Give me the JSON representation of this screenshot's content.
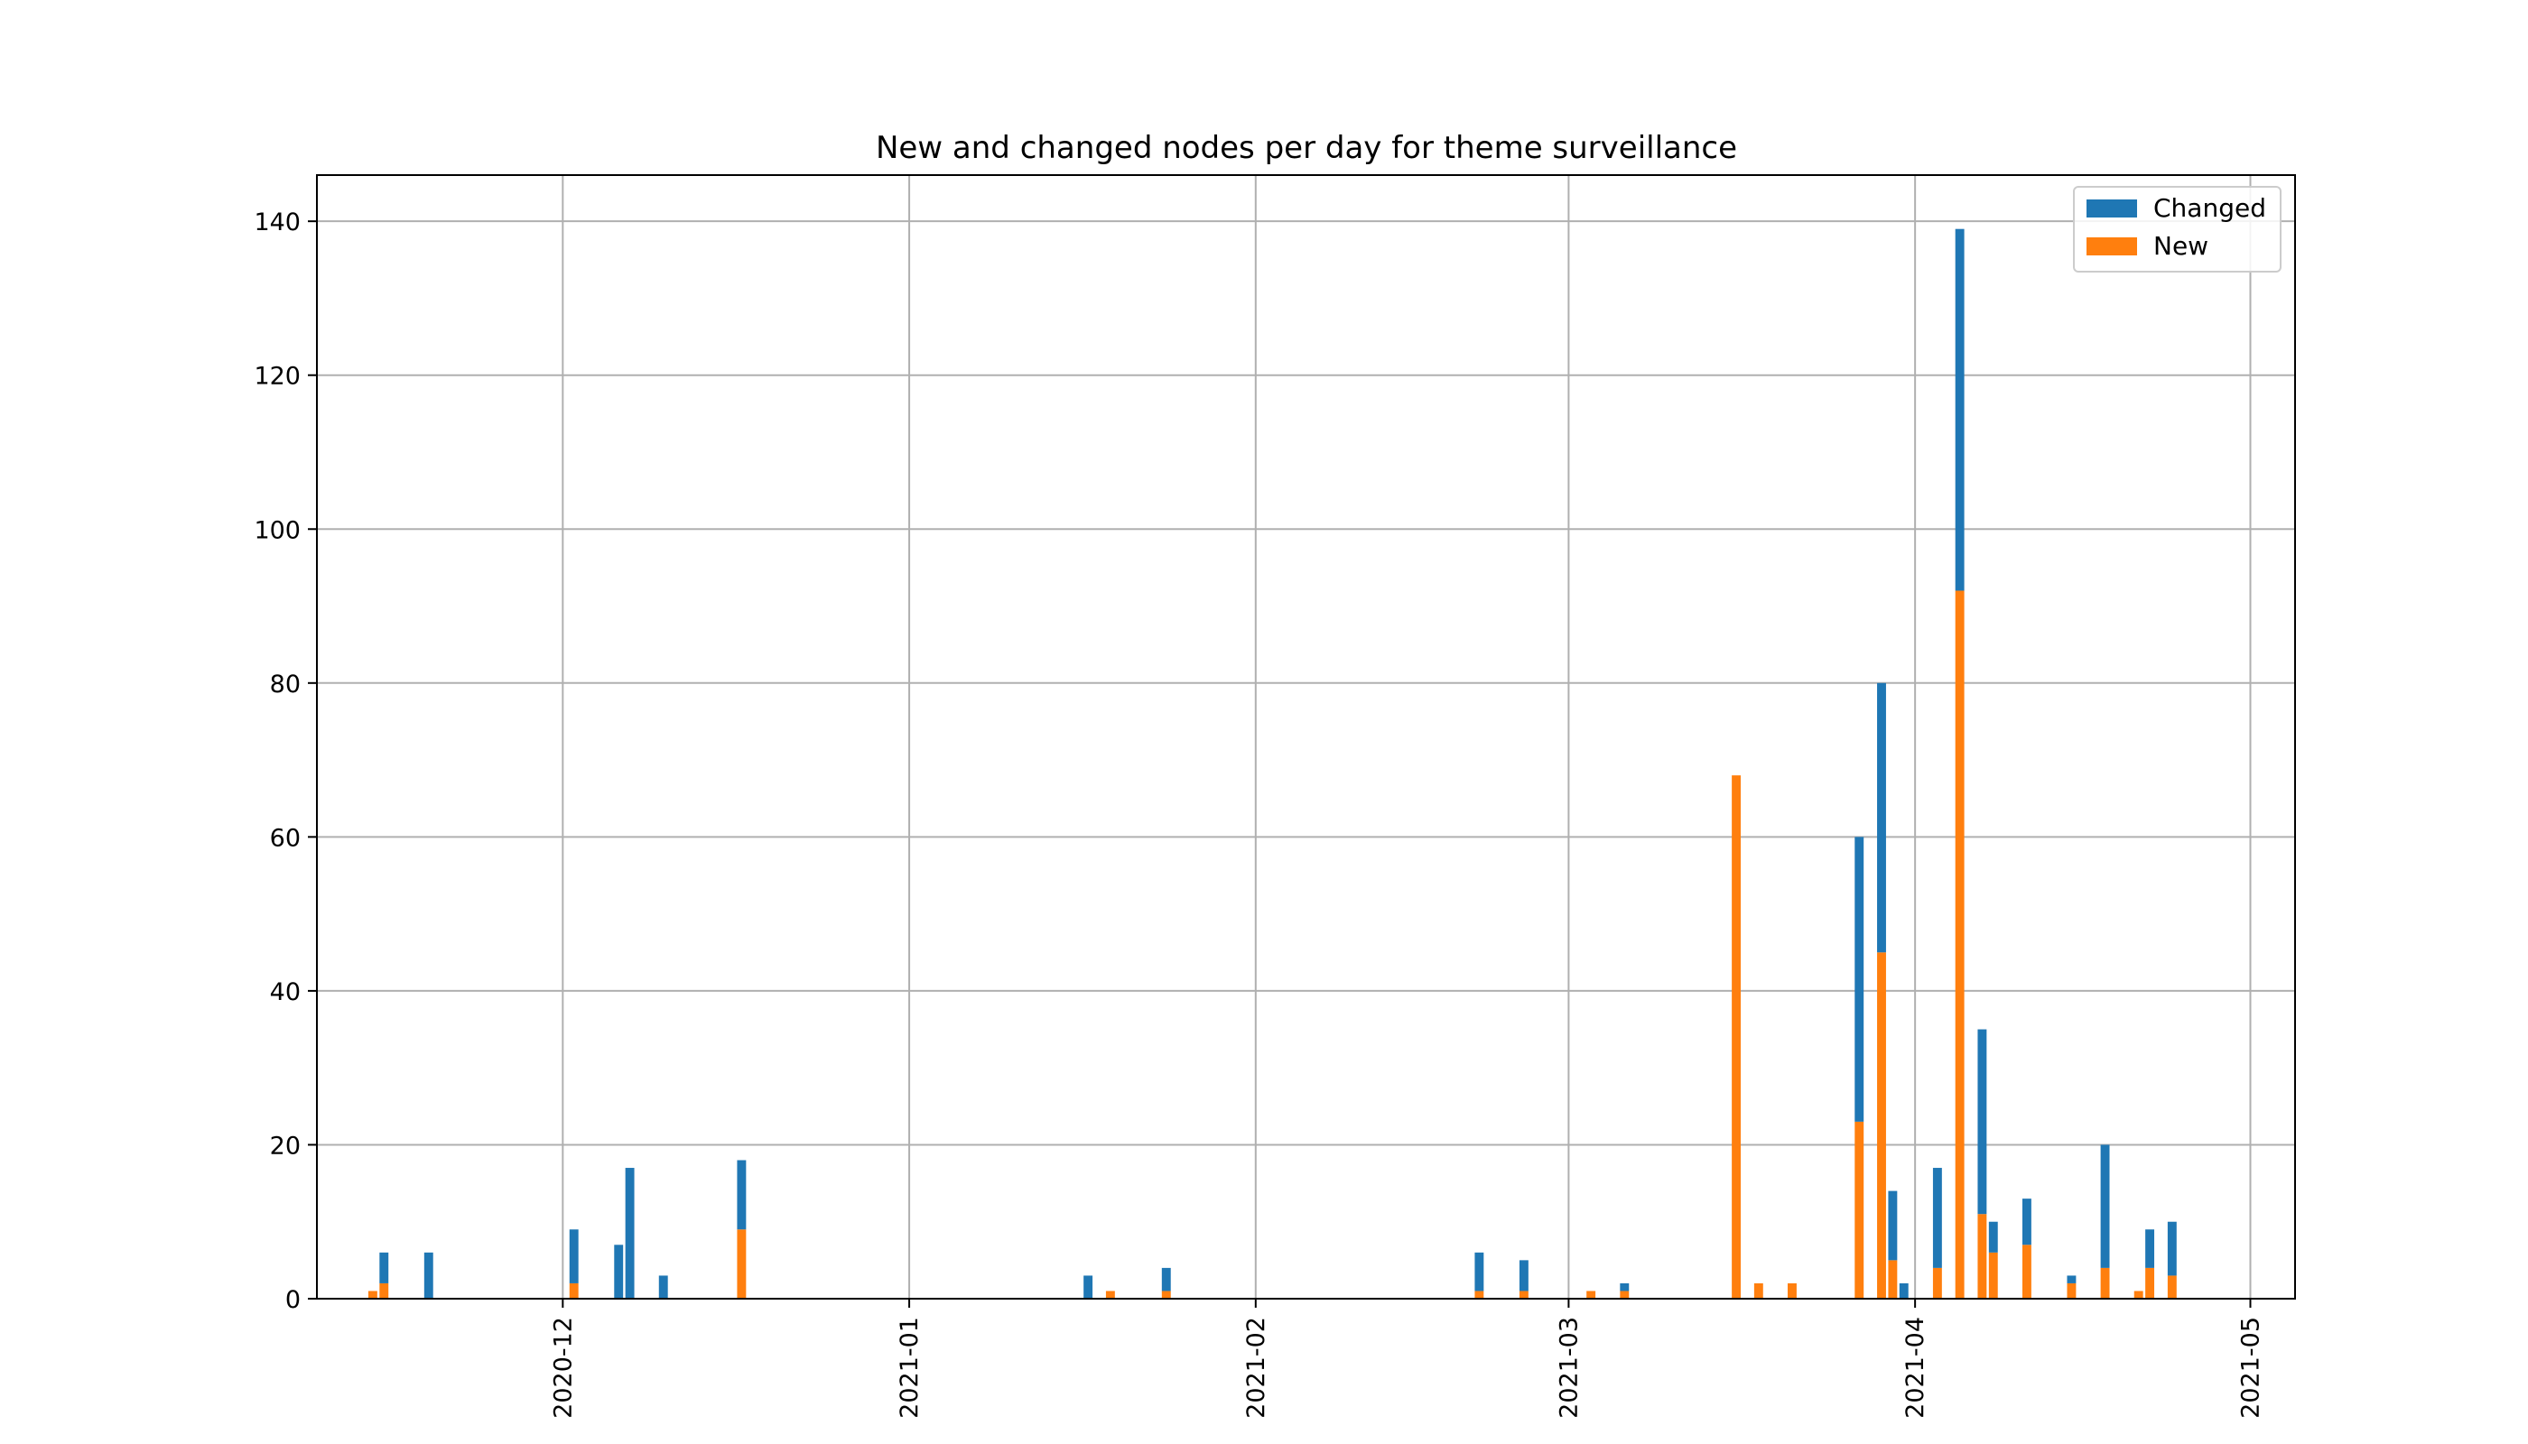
{
  "chart_data": {
    "type": "bar",
    "stacked": true,
    "title": "New and changed nodes per day for theme surveillance",
    "xlabel": "",
    "ylabel": "",
    "grid": true,
    "legend_position": "top-right",
    "x_axis": {
      "type": "date",
      "range": [
        "2020-11-09",
        "2021-05-05"
      ],
      "ticks": [
        "2020-12",
        "2021-01",
        "2021-02",
        "2021-03",
        "2021-04",
        "2021-05"
      ]
    },
    "y_axis": {
      "range": [
        0,
        146
      ],
      "ticks": [
        0,
        20,
        40,
        60,
        80,
        100,
        120,
        140
      ]
    },
    "series": [
      {
        "name": "New",
        "color": "#ff7f0e",
        "points": [
          {
            "date": "2020-11-14",
            "value": 1
          },
          {
            "date": "2020-11-15",
            "value": 2
          },
          {
            "date": "2020-11-19",
            "value": 0
          },
          {
            "date": "2020-12-02",
            "value": 2
          },
          {
            "date": "2020-12-06",
            "value": 0
          },
          {
            "date": "2020-12-07",
            "value": 0
          },
          {
            "date": "2020-12-10",
            "value": 0
          },
          {
            "date": "2020-12-17",
            "value": 9
          },
          {
            "date": "2021-01-17",
            "value": 0
          },
          {
            "date": "2021-01-19",
            "value": 1
          },
          {
            "date": "2021-01-24",
            "value": 1
          },
          {
            "date": "2021-02-21",
            "value": 1
          },
          {
            "date": "2021-02-25",
            "value": 1
          },
          {
            "date": "2021-03-03",
            "value": 1
          },
          {
            "date": "2021-03-06",
            "value": 1
          },
          {
            "date": "2021-03-16",
            "value": 68
          },
          {
            "date": "2021-03-18",
            "value": 2
          },
          {
            "date": "2021-03-21",
            "value": 2
          },
          {
            "date": "2021-03-27",
            "value": 23
          },
          {
            "date": "2021-03-29",
            "value": 45
          },
          {
            "date": "2021-03-30",
            "value": 5
          },
          {
            "date": "2021-03-31",
            "value": 0
          },
          {
            "date": "2021-04-03",
            "value": 4
          },
          {
            "date": "2021-04-05",
            "value": 92
          },
          {
            "date": "2021-04-07",
            "value": 11
          },
          {
            "date": "2021-04-08",
            "value": 6
          },
          {
            "date": "2021-04-11",
            "value": 7
          },
          {
            "date": "2021-04-15",
            "value": 2
          },
          {
            "date": "2021-04-18",
            "value": 4
          },
          {
            "date": "2021-04-21",
            "value": 1
          },
          {
            "date": "2021-04-22",
            "value": 4
          },
          {
            "date": "2021-04-24",
            "value": 3
          }
        ]
      },
      {
        "name": "Changed",
        "color": "#1f77b4",
        "points": [
          {
            "date": "2020-11-14",
            "value": 0
          },
          {
            "date": "2020-11-15",
            "value": 4
          },
          {
            "date": "2020-11-19",
            "value": 6
          },
          {
            "date": "2020-12-02",
            "value": 7
          },
          {
            "date": "2020-12-06",
            "value": 7
          },
          {
            "date": "2020-12-07",
            "value": 17
          },
          {
            "date": "2020-12-10",
            "value": 3
          },
          {
            "date": "2020-12-17",
            "value": 9
          },
          {
            "date": "2021-01-17",
            "value": 3
          },
          {
            "date": "2021-01-19",
            "value": 0
          },
          {
            "date": "2021-01-24",
            "value": 3
          },
          {
            "date": "2021-02-21",
            "value": 5
          },
          {
            "date": "2021-02-25",
            "value": 4
          },
          {
            "date": "2021-03-03",
            "value": 0
          },
          {
            "date": "2021-03-06",
            "value": 1
          },
          {
            "date": "2021-03-16",
            "value": 0
          },
          {
            "date": "2021-03-18",
            "value": 0
          },
          {
            "date": "2021-03-21",
            "value": 0
          },
          {
            "date": "2021-03-27",
            "value": 37
          },
          {
            "date": "2021-03-29",
            "value": 35
          },
          {
            "date": "2021-03-30",
            "value": 9
          },
          {
            "date": "2021-03-31",
            "value": 2
          },
          {
            "date": "2021-04-03",
            "value": 13
          },
          {
            "date": "2021-04-05",
            "value": 47
          },
          {
            "date": "2021-04-07",
            "value": 24
          },
          {
            "date": "2021-04-08",
            "value": 4
          },
          {
            "date": "2021-04-11",
            "value": 6
          },
          {
            "date": "2021-04-15",
            "value": 1
          },
          {
            "date": "2021-04-18",
            "value": 16
          },
          {
            "date": "2021-04-21",
            "value": 0
          },
          {
            "date": "2021-04-22",
            "value": 5
          },
          {
            "date": "2021-04-24",
            "value": 7
          }
        ]
      }
    ],
    "legend_order": [
      "Changed",
      "New"
    ]
  }
}
